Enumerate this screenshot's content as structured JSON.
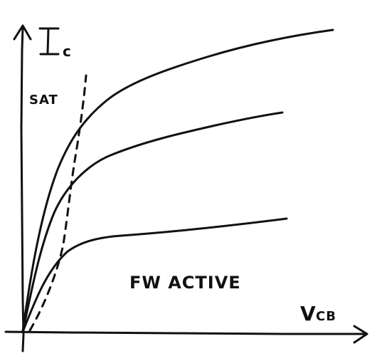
{
  "diagram": {
    "y_axis_label_main": "I",
    "y_axis_label_sub": "c",
    "x_axis_label_main": "V",
    "x_axis_label_sub": "CB",
    "saturation_label": "SAT",
    "region_label": "FW ACTIVE",
    "curve_count": 3,
    "line_color": "#111111",
    "background_color": "#ffffff"
  }
}
